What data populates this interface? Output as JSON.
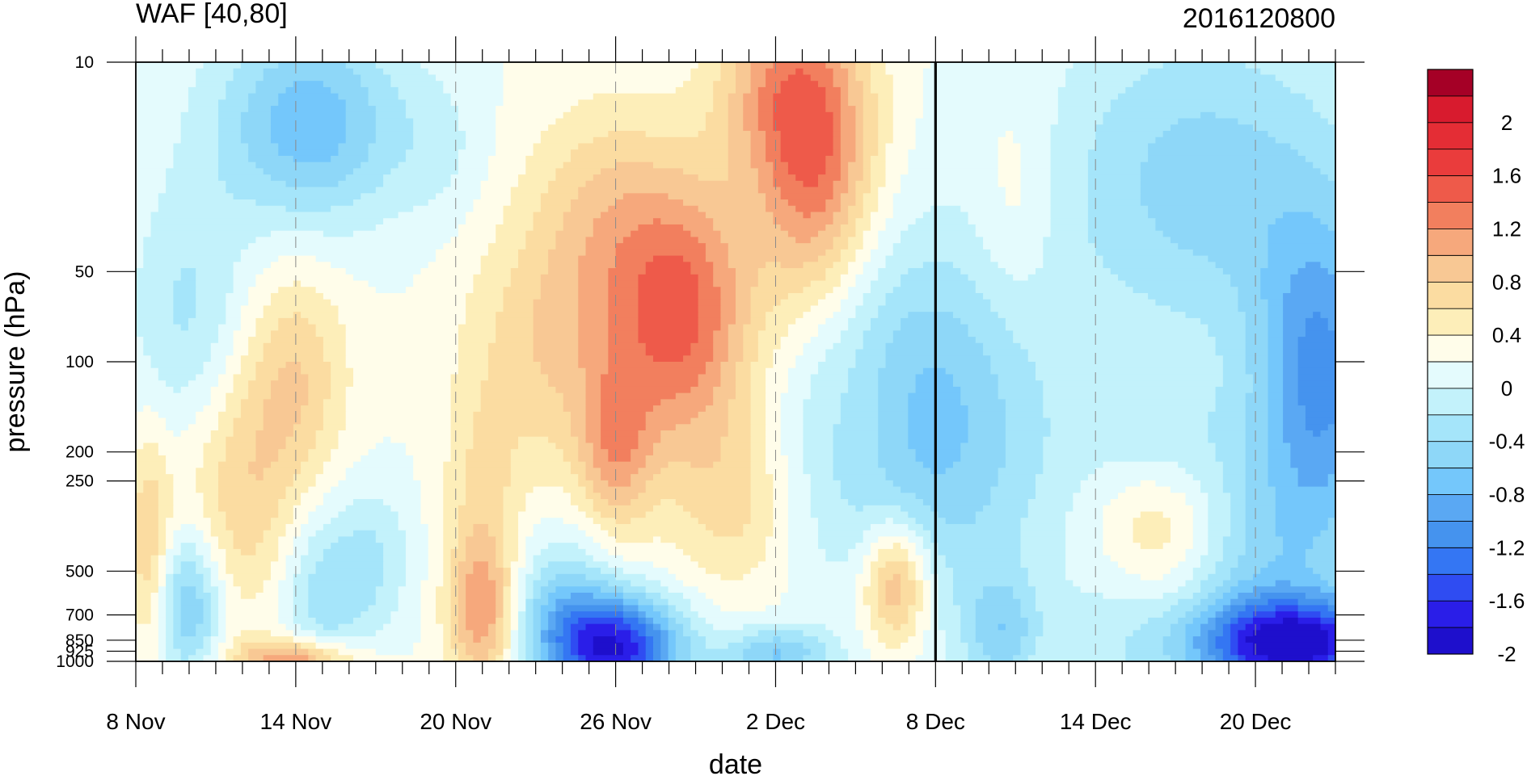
{
  "chart_data": {
    "type": "heatmap",
    "title_left": "WAF [40,80]",
    "title_right": "2016120800",
    "xlabel": "date",
    "ylabel": "pressure (hPa)",
    "x_ticks": [
      {
        "label": "8 Nov",
        "day": 0
      },
      {
        "label": "14 Nov",
        "day": 6
      },
      {
        "label": "20 Nov",
        "day": 12
      },
      {
        "label": "26 Nov",
        "day": 18
      },
      {
        "label": "2 Dec",
        "day": 24
      },
      {
        "label": "8 Dec",
        "day": 30
      },
      {
        "label": "14 Dec",
        "day": 36
      },
      {
        "label": "20 Dec",
        "day": 42
      }
    ],
    "x_range_days": [
      0,
      45
    ],
    "y_ticks": [
      {
        "label": "10",
        "p": 10
      },
      {
        "label": "50",
        "p": 50
      },
      {
        "label": "100",
        "p": 100
      },
      {
        "label": "200",
        "p": 200
      },
      {
        "label": "250",
        "p": 250
      },
      {
        "label": "500",
        "p": 500
      },
      {
        "label": "700",
        "p": 700
      },
      {
        "label": "850",
        "p": 850
      },
      {
        "label": "925",
        "p": 925
      },
      {
        "label": "1000",
        "p": 1000
      }
    ],
    "y_scale": "log-pressure, reversed",
    "y_range": [
      1000,
      10
    ],
    "reference_line": "8 Dec",
    "colorbar": {
      "levels": [
        -2.2,
        -2.0,
        -1.8,
        -1.6,
        -1.4,
        -1.2,
        -1.0,
        -0.8,
        -0.6,
        -0.4,
        -0.2,
        0.0,
        0.2,
        0.4,
        0.6,
        0.8,
        1.0,
        1.2,
        1.4,
        1.6,
        1.8,
        2.0,
        2.2
      ],
      "labels": [
        "2",
        "1.6",
        "1.2",
        "0.8",
        "0.4",
        "0",
        "-0.4",
        "-0.8",
        "-1.2",
        "-1.6",
        "-2"
      ],
      "colors": [
        "#1e0fcc",
        "#2a1ee8",
        "#2f4cf2",
        "#3476f3",
        "#4593ee",
        "#5aa8f3",
        "#74c7fb",
        "#8ed7f8",
        "#a5e5fa",
        "#c3f2fb",
        "#e4fbfd",
        "#fffdea",
        "#fdeeb9",
        "#fbdca1",
        "#f8c894",
        "#f6a87c",
        "#f27f5e",
        "#ee5a4a",
        "#ea3c3c",
        "#e42d35",
        "#d81b2e",
        "#a50026"
      ]
    },
    "features": [
      {
        "name": "positive-upper-late-nov",
        "day": 20.5,
        "p": 70,
        "value": 1.2
      },
      {
        "name": "positive-top-early-dec",
        "day": 25.5,
        "p": 20,
        "value": 1.2
      },
      {
        "name": "negative-surface-26nov",
        "day": 18,
        "p": 925,
        "value": -2.0
      },
      {
        "name": "negative-surface-late-dec",
        "day": 43.5,
        "p": 900,
        "value": -2.0
      },
      {
        "name": "negative-upper-late-dec",
        "day": 44.5,
        "p": 120,
        "value": -1.2
      }
    ]
  }
}
